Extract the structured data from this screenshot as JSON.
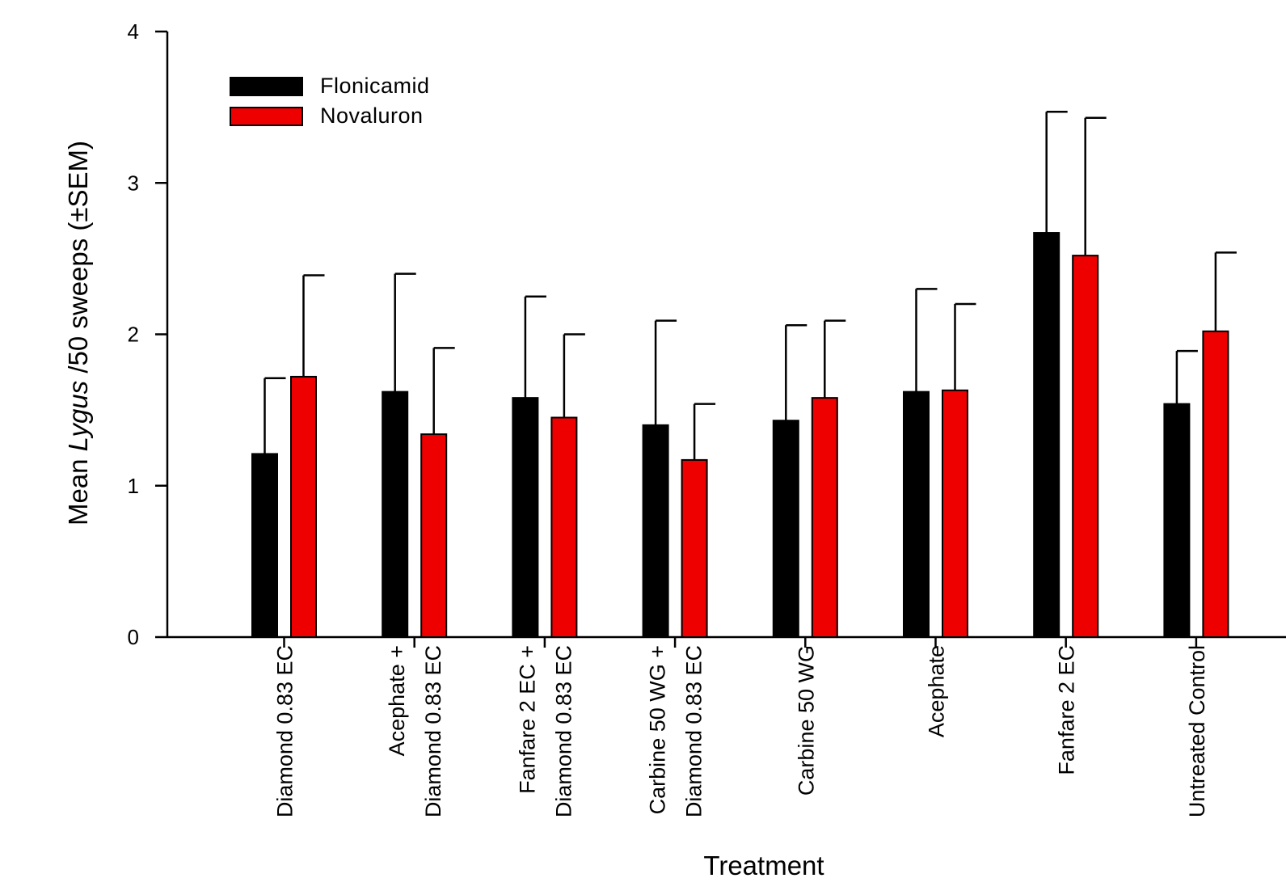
{
  "chart_data": {
    "type": "bar",
    "ylabel": {
      "prefix": "Mean ",
      "italic": "Lygus",
      "suffix": " /50 sweeps (±SEM)"
    },
    "xlabel": "Treatment",
    "ylim": [
      0,
      4
    ],
    "yticks": [
      "0",
      "1",
      "2",
      "3",
      "4"
    ],
    "legend_position": "top-left",
    "grid": false,
    "categories": [
      [
        "Diamond 0.83 EC"
      ],
      [
        "Acephate   +",
        "Diamond 0.83 EC"
      ],
      [
        "Fanfare 2 EC +",
        "Diamond 0.83 EC"
      ],
      [
        "Carbine 50 WG +",
        "Diamond 0.83 EC"
      ],
      [
        "Carbine 50 WG"
      ],
      [
        "Acephate"
      ],
      [
        "Fanfare 2 EC"
      ],
      [
        "Untreated Control"
      ]
    ],
    "series": [
      {
        "name": "Flonicamid",
        "color": "#000000",
        "values": [
          1.21,
          1.62,
          1.58,
          1.4,
          1.43,
          1.62,
          2.67,
          1.54
        ],
        "sem": [
          0.5,
          0.78,
          0.67,
          0.69,
          0.63,
          0.68,
          0.8,
          0.35
        ]
      },
      {
        "name": "Novaluron",
        "color": "#ee0000",
        "values": [
          1.72,
          1.34,
          1.45,
          1.17,
          1.58,
          1.63,
          2.52,
          2.02
        ],
        "sem": [
          0.67,
          0.57,
          0.55,
          0.37,
          0.51,
          0.57,
          0.91,
          0.52
        ]
      }
    ]
  }
}
